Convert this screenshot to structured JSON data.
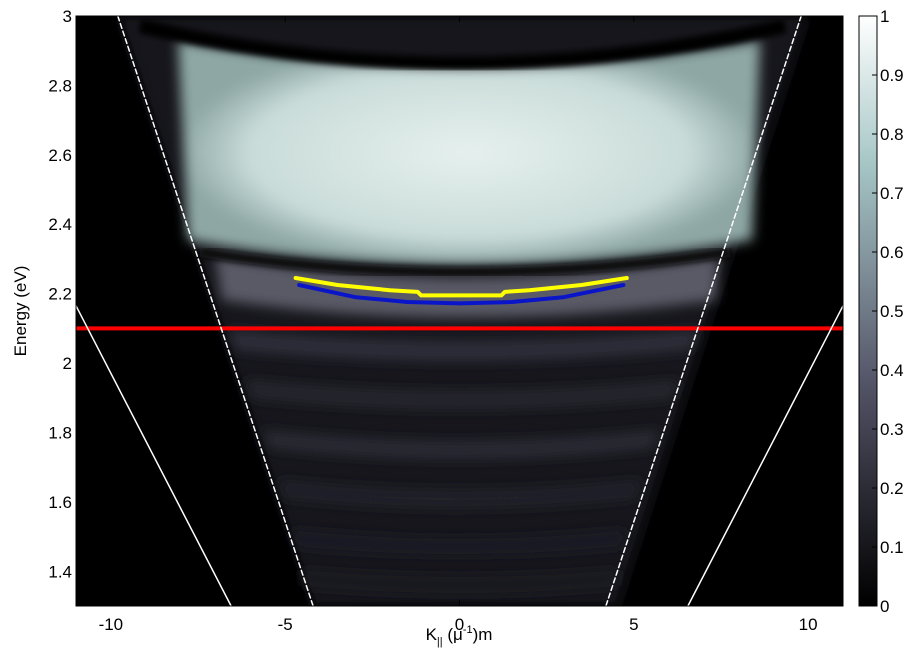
{
  "chart_data": {
    "type": "heatmap",
    "title": "",
    "xlabel": "K",
    "xlabel_subscript": "||",
    "xlabel_paren_open": " (",
    "xlabel_mu": "μ",
    "xlabel_superscript": "-1",
    "xlabel_tail": ")m",
    "ylabel": "Energy (eV)",
    "xlim": [
      -11,
      11
    ],
    "ylim": [
      1.3,
      3.0
    ],
    "x_ticks": [
      -10,
      -5,
      0,
      5,
      10
    ],
    "y_ticks": [
      1.4,
      1.6,
      1.8,
      2.0,
      2.2,
      2.4,
      2.6,
      2.8,
      3.0
    ],
    "y_tick_labels": [
      "1.4",
      "1.6",
      "1.8",
      "2",
      "2.2",
      "2.4",
      "2.6",
      "2.8",
      "3"
    ],
    "colorbar": {
      "colormap": "bone",
      "range": [
        0,
        1
      ],
      "ticks": [
        0,
        0.1,
        0.2,
        0.3,
        0.4,
        0.5,
        0.6,
        0.7,
        0.8,
        0.9,
        1
      ],
      "tick_labels": [
        "0",
        "0.1",
        "0.2",
        "0.3",
        "0.4",
        "0.5",
        "0.6",
        "0.7",
        "0.8",
        "0.9",
        "1"
      ]
    },
    "intensity_features": [
      {
        "name": "bright-band",
        "energy_range": [
          2.28,
          2.95
        ],
        "k_half_width": 8.0,
        "intensity": 0.85
      },
      {
        "name": "dark-arc",
        "energy_center": 2.97,
        "intensity": 0.05
      },
      {
        "name": "lower-fringes",
        "energy_range": [
          1.32,
          2.15
        ],
        "intensity": 0.18
      }
    ],
    "overlay_lines": [
      {
        "name": "red-horizontal",
        "color": "#ff0000",
        "style": "solid",
        "points": [
          [
            -11,
            2.1
          ],
          [
            11,
            2.1
          ]
        ]
      },
      {
        "name": "yellow-fit",
        "color": "#ffff00",
        "style": "solid",
        "points": [
          [
            -4.7,
            2.245
          ],
          [
            -3.5,
            2.225
          ],
          [
            -2.0,
            2.21
          ],
          [
            -1.2,
            2.205
          ],
          [
            -1.1,
            2.195
          ],
          [
            0,
            2.195
          ],
          [
            1.2,
            2.195
          ],
          [
            1.3,
            2.205
          ],
          [
            2.0,
            2.21
          ],
          [
            3.5,
            2.225
          ],
          [
            4.8,
            2.245
          ]
        ]
      },
      {
        "name": "blue-fit",
        "color": "#0a14c8",
        "style": "solid",
        "points": [
          [
            -4.6,
            2.225
          ],
          [
            -3.0,
            2.19
          ],
          [
            -1.5,
            2.176
          ],
          [
            0,
            2.172
          ],
          [
            1.5,
            2.176
          ],
          [
            3.0,
            2.19
          ],
          [
            4.7,
            2.225
          ]
        ]
      },
      {
        "name": "white-dashed-left",
        "color": "#ffffff",
        "style": "dashed",
        "points": [
          [
            -9.8,
            3.0
          ],
          [
            -4.2,
            1.3
          ]
        ]
      },
      {
        "name": "white-dashed-right",
        "color": "#ffffff",
        "style": "dashed",
        "points": [
          [
            9.8,
            3.0
          ],
          [
            4.2,
            1.3
          ]
        ]
      },
      {
        "name": "white-solid-left",
        "color": "#ffffff",
        "style": "solid",
        "points": [
          [
            -11,
            2.165
          ],
          [
            -6.55,
            1.3
          ]
        ]
      },
      {
        "name": "white-solid-right",
        "color": "#ffffff",
        "style": "solid",
        "points": [
          [
            11,
            2.165
          ],
          [
            6.55,
            1.3
          ]
        ]
      }
    ]
  }
}
